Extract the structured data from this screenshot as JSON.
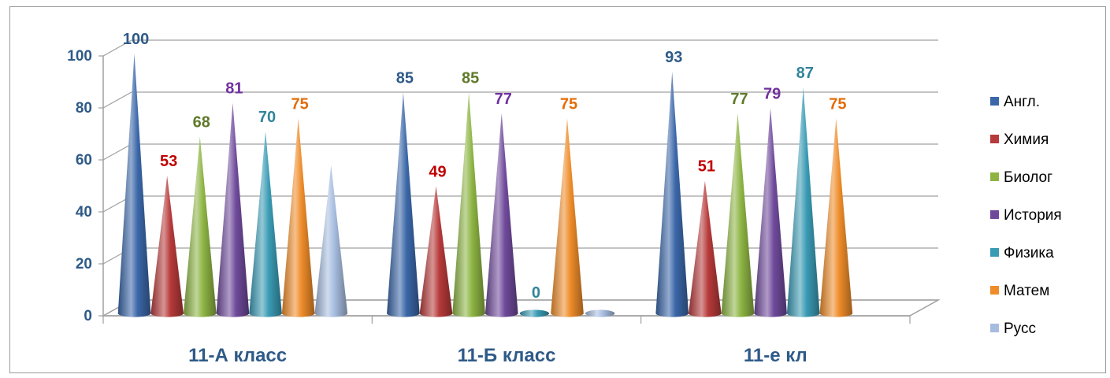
{
  "chart_data": {
    "type": "bar",
    "style": "3d-cone",
    "categories": [
      "11-А класс",
      "11-Б класс",
      "11-е кл"
    ],
    "series": [
      {
        "name": "Англ.",
        "color": "#3b67a8",
        "values": [
          100,
          85,
          93
        ]
      },
      {
        "name": "Химия",
        "color": "#b73a3a",
        "values": [
          53,
          49,
          51
        ]
      },
      {
        "name": "Биолог",
        "color": "#8db443",
        "values": [
          68,
          85,
          77
        ]
      },
      {
        "name": "История",
        "color": "#6f4a9b",
        "values": [
          81,
          77,
          79
        ]
      },
      {
        "name": "Физика",
        "color": "#3a9bb4",
        "values": [
          70,
          0,
          87
        ]
      },
      {
        "name": "Матем",
        "color": "#ee8c2a",
        "values": [
          75,
          75,
          75
        ]
      },
      {
        "name": "Русс",
        "color": "#a7bde0",
        "values": [
          57,
          0,
          null
        ]
      }
    ],
    "data_labels": [
      [
        "100",
        "85",
        "93"
      ],
      [
        "53",
        "49",
        "51"
      ],
      [
        "68",
        "85",
        "77"
      ],
      [
        "81",
        "77",
        "79"
      ],
      [
        "70",
        "0",
        "87"
      ],
      [
        "75",
        "75",
        "75"
      ],
      [
        null,
        null,
        null
      ]
    ],
    "label_colors": [
      "#2e5a87",
      "#c00000",
      "#5f7a2a",
      "#7030a0",
      "#31849b",
      "#e36c0a",
      "#2e5a87"
    ],
    "ylim": [
      0,
      100
    ],
    "yticks": [
      0,
      20,
      40,
      60,
      80,
      100
    ],
    "ytick_labels": [
      "0",
      "20",
      "40",
      "60",
      "80",
      "100"
    ],
    "grid": true,
    "legend_position": "right",
    "title": "",
    "xlabel": "",
    "ylabel": ""
  }
}
